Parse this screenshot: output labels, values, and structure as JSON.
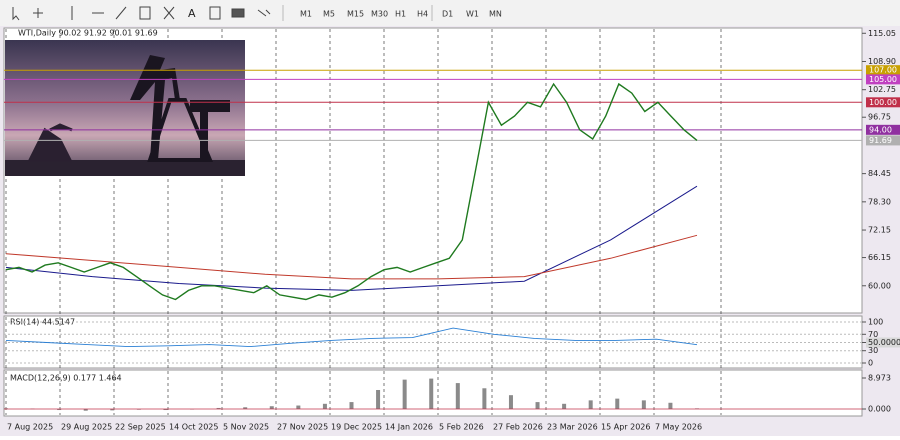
{
  "toolbar": {
    "timeframes": [
      "M1",
      "M5",
      "M15",
      "M30",
      "H1",
      "H4",
      "D1",
      "W1",
      "MN"
    ]
  },
  "time_axis": {
    "labels": [
      "7 Aug 2025",
      "29 Aug 2025",
      "22 Sep 2025",
      "14 Oct 2025",
      "5 Nov 2025",
      "27 Nov 2025",
      "19 Dec 2025",
      "14 Jan 2026",
      "5 Feb 2026",
      "27 Feb 2026",
      "23 Mar 2026",
      "15 Apr 2026",
      "7 May 2026"
    ]
  },
  "chart_data": [
    {
      "type": "line",
      "title": "WTI,Daily 90.02 91.92 90.01 91.69",
      "ylim": [
        54.5,
        116.2
      ],
      "yticks": [
        115.05,
        {
          "value": 108.9,
          "label": "108.90"
        },
        102.75,
        96.75,
        84.45,
        {
          "value": 78.3,
          "label": "78.30"
        },
        72.15,
        66.15,
        {
          "value": 60,
          "label": "60.00"
        }
      ],
      "series": [
        {
          "color": "#1f7a1f",
          "values": [
            63.5,
            64,
            63,
            64.5,
            65,
            64,
            63,
            64,
            65,
            64,
            62,
            60,
            58,
            57,
            59,
            60,
            60,
            59.5,
            59,
            58.5,
            60,
            58,
            57.5,
            57,
            58,
            57.5,
            58.5,
            60,
            62,
            63.5,
            64,
            63,
            64,
            65,
            66,
            70,
            85,
            100,
            95,
            97,
            100,
            99,
            104,
            100,
            94,
            92,
            97,
            104,
            102,
            98,
            100,
            97,
            94,
            91.69
          ]
        }
      ],
      "moving_averages": [
        {
          "color": "#1a1a8c",
          "values": [
            64,
            62,
            60.5,
            59.5,
            59,
            60,
            61,
            70,
            81.7
          ]
        },
        {
          "color": "#c0392b",
          "values": [
            67,
            65.5,
            64,
            62.5,
            61.5,
            61.5,
            62,
            66,
            71
          ]
        }
      ],
      "levels": [
        {
          "value": 107,
          "label": "107.00",
          "color": "#c8a000"
        },
        {
          "value": 105,
          "label": "105.00",
          "color": "#c040c0"
        },
        {
          "value": 100,
          "label": "100.00",
          "color": "#c0304a"
        },
        {
          "value": 94,
          "label": "94.00",
          "color": "#9030a0"
        },
        {
          "value": 91.69,
          "label": "91.69",
          "color": "#b0b0b0"
        }
      ]
    },
    {
      "type": "line",
      "title": "RSI(14) 44.5147",
      "ylim": [
        0,
        100
      ],
      "yticks": [
        100,
        70,
        {
          "value": 50,
          "label": "50.0000"
        },
        30,
        0
      ],
      "series": [
        {
          "color": "#2a7fd4",
          "values": [
            55,
            50,
            45,
            40,
            42,
            45,
            40,
            48,
            55,
            60,
            62,
            85,
            70,
            60,
            55,
            55,
            58,
            44.5147
          ]
        }
      ]
    },
    {
      "type": "bar",
      "title": "MACD(12,26,9) 0.177 1.464",
      "ylim": [
        -1.74,
        11.29
      ],
      "yticks": [
        8.973,
        {
          "value": 0,
          "label": "0.000"
        }
      ],
      "color": "#8a8a8a",
      "values": [
        0.2,
        0.1,
        -0.3,
        -0.5,
        -0.4,
        -0.2,
        -0.3,
        -0.1,
        0.3,
        0.5,
        0.8,
        1.0,
        1.5,
        2.0,
        5.5,
        8.5,
        8.8,
        7.5,
        6.0,
        4.0,
        2.0,
        1.5,
        2.5,
        3.0,
        2.5,
        1.8,
        0.177
      ]
    }
  ]
}
